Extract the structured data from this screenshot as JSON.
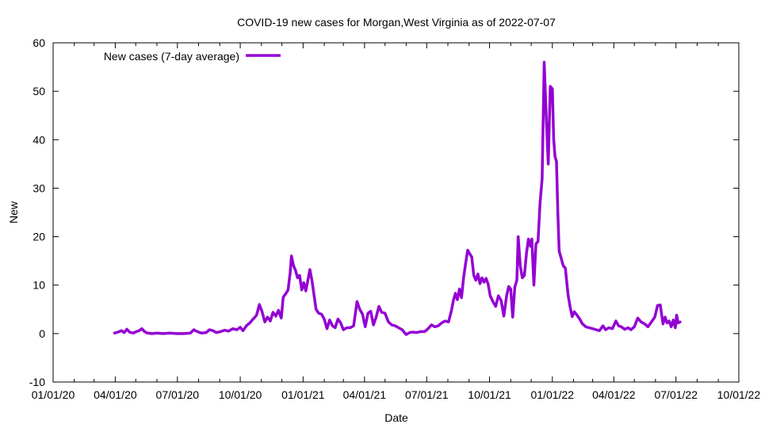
{
  "chart_data": {
    "type": "line",
    "title": "COVID-19 new cases for Morgan,West Virginia as of 2022-07-07",
    "xlabel": "Date",
    "ylabel": "New",
    "xlim": [
      "2020-01-01",
      "2022-10-01"
    ],
    "ylim": [
      -10,
      60
    ],
    "yticks": [
      -10,
      0,
      10,
      20,
      30,
      40,
      50,
      60
    ],
    "xticks": [
      {
        "date": "2020-01-01",
        "label": "01/01/20"
      },
      {
        "date": "2020-04-01",
        "label": "04/01/20"
      },
      {
        "date": "2020-07-01",
        "label": "07/01/20"
      },
      {
        "date": "2020-10-01",
        "label": "10/01/20"
      },
      {
        "date": "2021-01-01",
        "label": "01/01/21"
      },
      {
        "date": "2021-04-01",
        "label": "04/01/21"
      },
      {
        "date": "2021-07-01",
        "label": "07/01/21"
      },
      {
        "date": "2021-10-01",
        "label": "10/01/21"
      },
      {
        "date": "2022-01-01",
        "label": "01/01/22"
      },
      {
        "date": "2022-04-01",
        "label": "04/01/22"
      },
      {
        "date": "2022-07-01",
        "label": "07/01/22"
      },
      {
        "date": "2022-10-01",
        "label": "10/01/22"
      }
    ],
    "grid": false,
    "legend_position": "top-left",
    "series": [
      {
        "name": "New cases (7-day average)",
        "color": "#9400d3",
        "points": [
          [
            "2020-03-31",
            0.1
          ],
          [
            "2020-04-05",
            0.3
          ],
          [
            "2020-04-10",
            0.6
          ],
          [
            "2020-04-14",
            0.2
          ],
          [
            "2020-04-18",
            0.9
          ],
          [
            "2020-04-22",
            0.3
          ],
          [
            "2020-04-27",
            0.1
          ],
          [
            "2020-05-02",
            0.4
          ],
          [
            "2020-05-06",
            0.6
          ],
          [
            "2020-05-10",
            1.0
          ],
          [
            "2020-05-14",
            0.4
          ],
          [
            "2020-05-18",
            0.1
          ],
          [
            "2020-05-25",
            0.0
          ],
          [
            "2020-06-01",
            0.1
          ],
          [
            "2020-06-10",
            0.0
          ],
          [
            "2020-06-20",
            0.1
          ],
          [
            "2020-06-30",
            0.0
          ],
          [
            "2020-07-10",
            0.0
          ],
          [
            "2020-07-20",
            0.1
          ],
          [
            "2020-07-25",
            0.8
          ],
          [
            "2020-07-30",
            0.4
          ],
          [
            "2020-08-05",
            0.1
          ],
          [
            "2020-08-12",
            0.2
          ],
          [
            "2020-08-17",
            0.8
          ],
          [
            "2020-08-22",
            0.6
          ],
          [
            "2020-08-27",
            0.2
          ],
          [
            "2020-09-02",
            0.4
          ],
          [
            "2020-09-08",
            0.7
          ],
          [
            "2020-09-14",
            0.5
          ],
          [
            "2020-09-20",
            1.0
          ],
          [
            "2020-09-26",
            0.8
          ],
          [
            "2020-10-01",
            1.3
          ],
          [
            "2020-10-05",
            0.6
          ],
          [
            "2020-10-10",
            1.6
          ],
          [
            "2020-10-15",
            2.2
          ],
          [
            "2020-10-20",
            3.0
          ],
          [
            "2020-10-25",
            3.8
          ],
          [
            "2020-10-29",
            6.0
          ],
          [
            "2020-11-02",
            4.5
          ],
          [
            "2020-11-06",
            2.4
          ],
          [
            "2020-11-10",
            3.4
          ],
          [
            "2020-11-14",
            2.6
          ],
          [
            "2020-11-18",
            4.4
          ],
          [
            "2020-11-22",
            3.6
          ],
          [
            "2020-11-26",
            4.8
          ],
          [
            "2020-11-30",
            3.2
          ],
          [
            "2020-12-03",
            7.5
          ],
          [
            "2020-12-07",
            8.3
          ],
          [
            "2020-12-10",
            9.0
          ],
          [
            "2020-12-13",
            12.5
          ],
          [
            "2020-12-15",
            16.0
          ],
          [
            "2020-12-18",
            14.0
          ],
          [
            "2020-12-21",
            13.0
          ],
          [
            "2020-12-24",
            11.5
          ],
          [
            "2020-12-27",
            12.0
          ],
          [
            "2020-12-30",
            9.0
          ],
          [
            "2021-01-02",
            10.5
          ],
          [
            "2021-01-05",
            8.8
          ],
          [
            "2021-01-08",
            11.0
          ],
          [
            "2021-01-11",
            13.2
          ],
          [
            "2021-01-14",
            11.0
          ],
          [
            "2021-01-17",
            8.0
          ],
          [
            "2021-01-20",
            5.0
          ],
          [
            "2021-01-24",
            4.2
          ],
          [
            "2021-01-28",
            4.0
          ],
          [
            "2021-02-01",
            3.0
          ],
          [
            "2021-02-05",
            1.0
          ],
          [
            "2021-02-09",
            2.8
          ],
          [
            "2021-02-13",
            1.6
          ],
          [
            "2021-02-17",
            1.2
          ],
          [
            "2021-02-21",
            3.0
          ],
          [
            "2021-02-25",
            2.2
          ],
          [
            "2021-03-01",
            0.8
          ],
          [
            "2021-03-06",
            1.2
          ],
          [
            "2021-03-11",
            1.2
          ],
          [
            "2021-03-16",
            1.6
          ],
          [
            "2021-03-21",
            6.6
          ],
          [
            "2021-03-25",
            5.0
          ],
          [
            "2021-03-29",
            4.0
          ],
          [
            "2021-04-02",
            1.4
          ],
          [
            "2021-04-06",
            4.2
          ],
          [
            "2021-04-10",
            4.6
          ],
          [
            "2021-04-14",
            1.8
          ],
          [
            "2021-04-18",
            3.4
          ],
          [
            "2021-04-22",
            5.6
          ],
          [
            "2021-04-26",
            4.4
          ],
          [
            "2021-05-01",
            4.2
          ],
          [
            "2021-05-06",
            2.4
          ],
          [
            "2021-05-11",
            1.8
          ],
          [
            "2021-05-16",
            1.6
          ],
          [
            "2021-05-21",
            1.2
          ],
          [
            "2021-05-26",
            0.8
          ],
          [
            "2021-06-01",
            -0.2
          ],
          [
            "2021-06-06",
            0.2
          ],
          [
            "2021-06-11",
            0.3
          ],
          [
            "2021-06-16",
            0.2
          ],
          [
            "2021-06-22",
            0.4
          ],
          [
            "2021-06-28",
            0.4
          ],
          [
            "2021-07-03",
            1.0
          ],
          [
            "2021-07-08",
            1.8
          ],
          [
            "2021-07-13",
            1.4
          ],
          [
            "2021-07-18",
            1.6
          ],
          [
            "2021-07-23",
            2.2
          ],
          [
            "2021-07-28",
            2.6
          ],
          [
            "2021-08-02",
            2.4
          ],
          [
            "2021-08-06",
            4.6
          ],
          [
            "2021-08-09",
            6.8
          ],
          [
            "2021-08-12",
            8.3
          ],
          [
            "2021-08-15",
            7.0
          ],
          [
            "2021-08-18",
            9.2
          ],
          [
            "2021-08-21",
            7.4
          ],
          [
            "2021-08-24",
            11.5
          ],
          [
            "2021-08-27",
            14.5
          ],
          [
            "2021-08-30",
            17.2
          ],
          [
            "2021-09-02",
            16.5
          ],
          [
            "2021-09-05",
            15.8
          ],
          [
            "2021-09-08",
            12.0
          ],
          [
            "2021-09-11",
            11.0
          ],
          [
            "2021-09-14",
            12.3
          ],
          [
            "2021-09-17",
            10.3
          ],
          [
            "2021-09-20",
            11.5
          ],
          [
            "2021-09-23",
            10.6
          ],
          [
            "2021-09-26",
            11.4
          ],
          [
            "2021-09-29",
            10.2
          ],
          [
            "2021-10-02",
            7.8
          ],
          [
            "2021-10-06",
            6.6
          ],
          [
            "2021-10-10",
            5.6
          ],
          [
            "2021-10-14",
            7.8
          ],
          [
            "2021-10-18",
            6.8
          ],
          [
            "2021-10-22",
            3.6
          ],
          [
            "2021-10-26",
            7.8
          ],
          [
            "2021-10-29",
            9.7
          ],
          [
            "2021-11-01",
            9.2
          ],
          [
            "2021-11-04",
            3.4
          ],
          [
            "2021-11-07",
            9.6
          ],
          [
            "2021-11-10",
            11.0
          ],
          [
            "2021-11-12",
            20.0
          ],
          [
            "2021-11-15",
            14.0
          ],
          [
            "2021-11-18",
            11.5
          ],
          [
            "2021-11-21",
            12.0
          ],
          [
            "2021-11-24",
            16.5
          ],
          [
            "2021-11-27",
            19.5
          ],
          [
            "2021-11-30",
            18.0
          ],
          [
            "2021-12-02",
            19.5
          ],
          [
            "2021-12-05",
            10.0
          ],
          [
            "2021-12-08",
            18.5
          ],
          [
            "2021-12-11",
            19.0
          ],
          [
            "2021-12-14",
            27.0
          ],
          [
            "2021-12-17",
            32.0
          ],
          [
            "2021-12-20",
            56.0
          ],
          [
            "2021-12-23",
            45.0
          ],
          [
            "2021-12-26",
            35.0
          ],
          [
            "2021-12-29",
            51.0
          ],
          [
            "2022-01-01",
            50.5
          ],
          [
            "2022-01-03",
            40.0
          ],
          [
            "2022-01-05",
            36.5
          ],
          [
            "2022-01-07",
            35.5
          ],
          [
            "2022-01-09",
            25.0
          ],
          [
            "2022-01-11",
            17.0
          ],
          [
            "2022-01-14",
            15.5
          ],
          [
            "2022-01-17",
            14.0
          ],
          [
            "2022-01-20",
            13.5
          ],
          [
            "2022-01-24",
            8.0
          ],
          [
            "2022-01-27",
            5.5
          ],
          [
            "2022-01-30",
            3.5
          ],
          [
            "2022-02-02",
            4.5
          ],
          [
            "2022-02-06",
            3.8
          ],
          [
            "2022-02-10",
            3.0
          ],
          [
            "2022-02-14",
            2.0
          ],
          [
            "2022-02-19",
            1.4
          ],
          [
            "2022-02-24",
            1.2
          ],
          [
            "2022-03-01",
            1.0
          ],
          [
            "2022-03-06",
            0.8
          ],
          [
            "2022-03-11",
            0.6
          ],
          [
            "2022-03-16",
            1.6
          ],
          [
            "2022-03-20",
            0.8
          ],
          [
            "2022-03-25",
            1.2
          ],
          [
            "2022-03-30",
            1.0
          ],
          [
            "2022-04-04",
            2.6
          ],
          [
            "2022-04-08",
            1.6
          ],
          [
            "2022-04-12",
            1.4
          ],
          [
            "2022-04-17",
            0.9
          ],
          [
            "2022-04-22",
            1.2
          ],
          [
            "2022-04-26",
            0.8
          ],
          [
            "2022-05-01",
            1.4
          ],
          [
            "2022-05-06",
            3.2
          ],
          [
            "2022-05-11",
            2.4
          ],
          [
            "2022-05-16",
            2.0
          ],
          [
            "2022-05-21",
            1.4
          ],
          [
            "2022-05-26",
            2.4
          ],
          [
            "2022-05-31",
            3.4
          ],
          [
            "2022-06-04",
            5.8
          ],
          [
            "2022-06-08",
            5.9
          ],
          [
            "2022-06-12",
            2.0
          ],
          [
            "2022-06-15",
            3.4
          ],
          [
            "2022-06-18",
            2.2
          ],
          [
            "2022-06-21",
            2.6
          ],
          [
            "2022-06-24",
            1.4
          ],
          [
            "2022-06-27",
            2.8
          ],
          [
            "2022-06-30",
            1.2
          ],
          [
            "2022-07-02",
            3.8
          ],
          [
            "2022-07-04",
            2.2
          ],
          [
            "2022-07-07",
            2.4
          ]
        ]
      }
    ]
  }
}
